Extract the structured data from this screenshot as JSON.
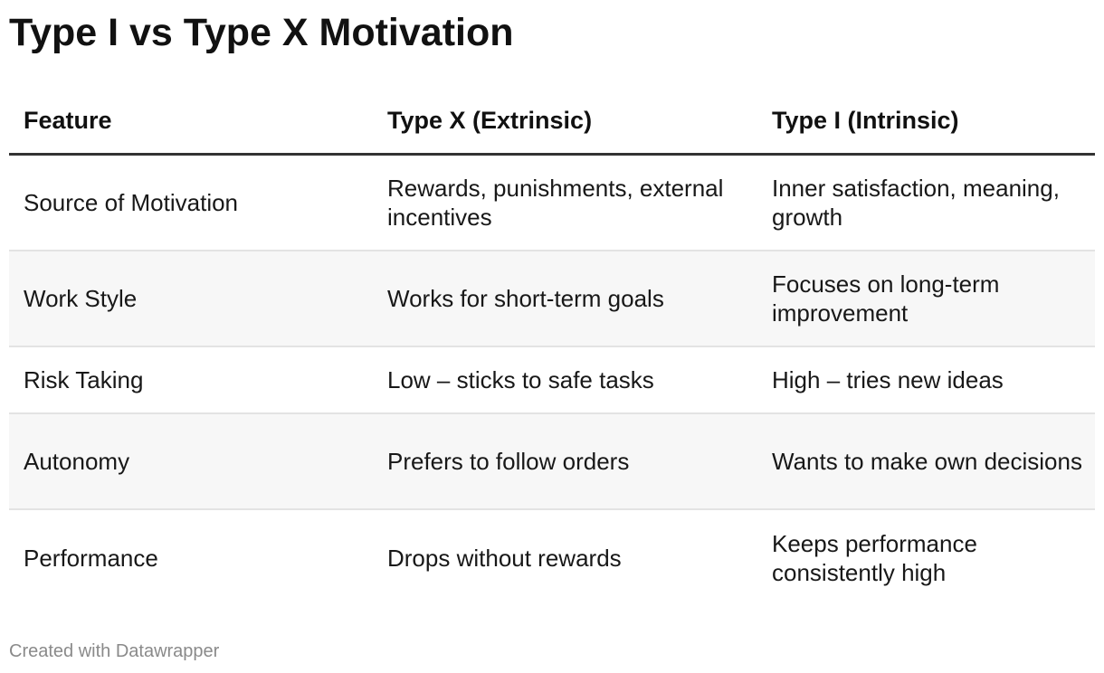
{
  "chart_data": {
    "type": "table",
    "title": "Type I vs Type X Motivation",
    "columns": [
      "Feature",
      "Type X (Extrinsic)",
      "Type I (Intrinsic)"
    ],
    "rows": [
      [
        "Source of Motivation",
        "Rewards, punishments, external incentives",
        "Inner satisfaction, meaning, growth"
      ],
      [
        "Work Style",
        "Works for short-term goals",
        "Focuses on long-term improvement"
      ],
      [
        "Risk Taking",
        "Low – sticks to safe tasks",
        "High – tries new ideas"
      ],
      [
        "Autonomy",
        "Prefers to follow orders",
        "Wants to make own decisions"
      ],
      [
        "Performance",
        "Drops without rewards",
        "Keeps performance consistently high"
      ]
    ],
    "footer": "Created with Datawrapper",
    "colors": {
      "header_rule": "#333333",
      "row_divider": "#e3e3e3",
      "alt_row_background": "#f7f7f7",
      "footer_text": "#8a8a8a"
    }
  }
}
